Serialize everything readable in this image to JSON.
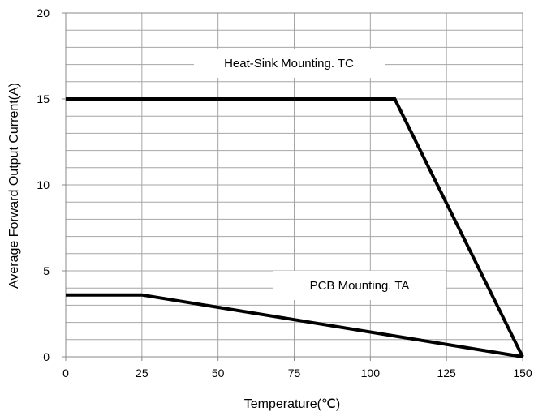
{
  "chart_data": {
    "type": "line",
    "xlabel": "Temperature(℃)",
    "ylabel": "Average Forward Output Current(A)",
    "xlim": [
      0,
      150
    ],
    "ylim": [
      0,
      20
    ],
    "x_ticks": [
      "0",
      "25",
      "50",
      "75",
      "100",
      "125",
      "150"
    ],
    "y_ticks": [
      "0",
      "5",
      "10",
      "15",
      "20"
    ],
    "grid": true,
    "series": [
      {
        "name": "Heat-Sink Mounting. TC",
        "x": [
          0,
          108,
          150
        ],
        "y": [
          15,
          15,
          0
        ]
      },
      {
        "name": "PCB Mounting. TA",
        "x": [
          0,
          25,
          150
        ],
        "y": [
          3.6,
          3.6,
          0
        ]
      }
    ],
    "annotations": [
      "Heat-Sink Mounting. TC",
      "PCB Mounting. TA"
    ],
    "colors": {
      "line": "#000000",
      "grid": "#a6a6a6",
      "background": "#ffffff"
    }
  }
}
